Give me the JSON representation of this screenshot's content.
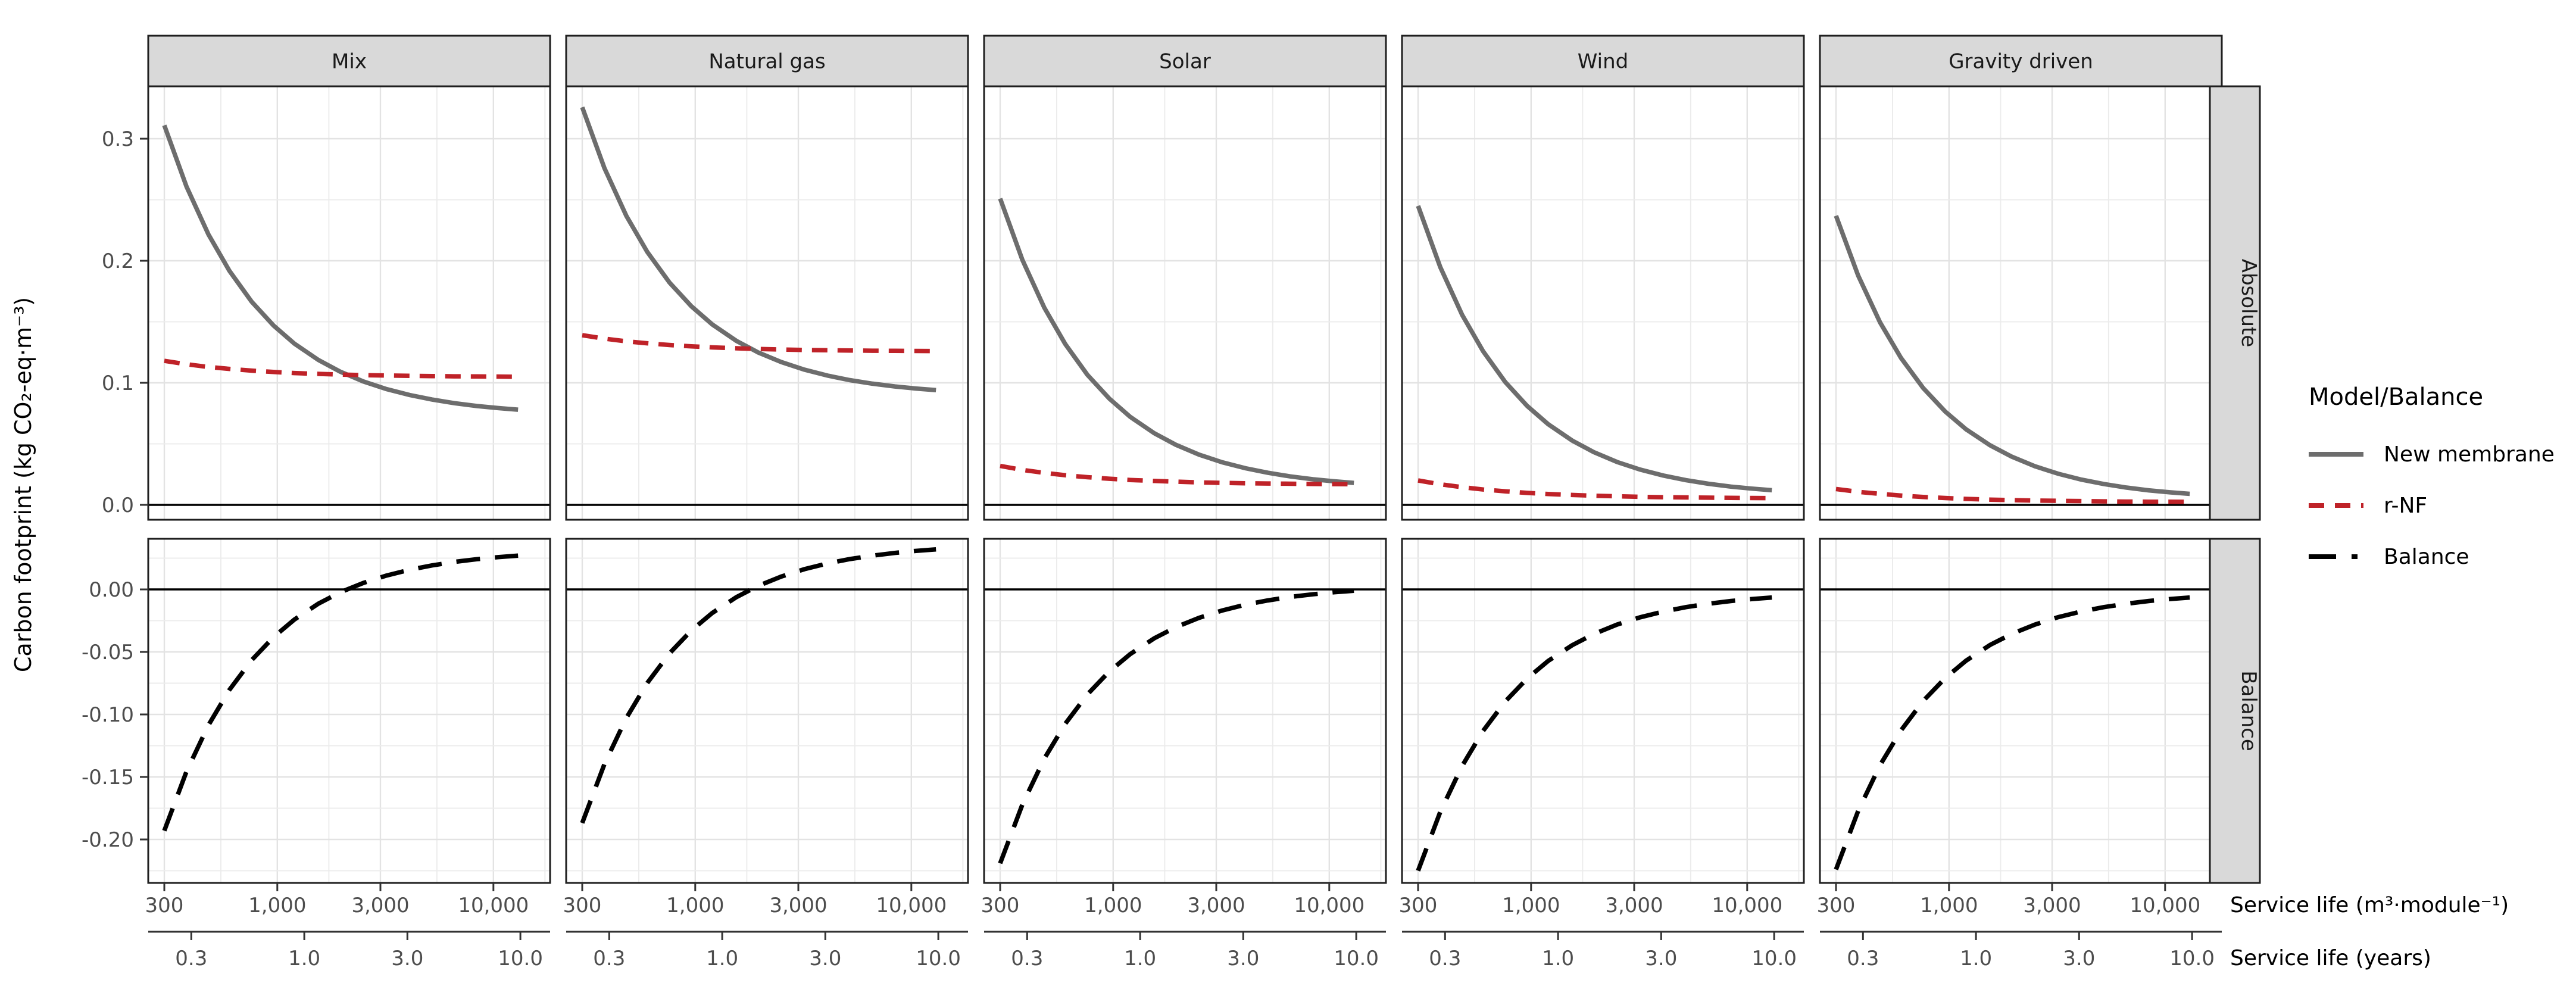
{
  "chart_data": {
    "type": "line",
    "title": "",
    "ylabel": "Carbon footprint (kg CO₂-eq·m⁻³)",
    "xlabel_primary": "Service life (m³·module⁻¹)",
    "xlabel_secondary": "Service life (years)",
    "x_scale": "log10",
    "x_range": [
      253,
      18300
    ],
    "x_ticks": {
      "values": [
        300,
        1000,
        3000,
        10000
      ],
      "labels": [
        "300",
        "1,000",
        "3,000",
        "10,000"
      ]
    },
    "x_minor": [
      548,
      1732,
      5477,
      17320
    ],
    "x_ticks_secondary": {
      "values_years": [
        0.3,
        1,
        3,
        10
      ],
      "labels": [
        "0.3",
        "1.0",
        "3.0",
        "10.0"
      ],
      "m3_per_year": 1333
    },
    "facet_columns": [
      "Mix",
      "Natural gas",
      "Solar",
      "Wind",
      "Gravity driven"
    ],
    "facet_rows": [
      "Absolute",
      "Balance"
    ],
    "rows": [
      {
        "name": "Absolute",
        "ylim": [
          -0.012,
          0.343
        ],
        "ticks": [
          0.0,
          0.1,
          0.2,
          0.3
        ],
        "tick_labels": [
          "0.0",
          "0.1",
          "0.2",
          "0.3"
        ],
        "minor": [
          0.05,
          0.15,
          0.25
        ],
        "zero_line": 0.0,
        "grid": true
      },
      {
        "name": "Balance",
        "ylim": [
          -0.235,
          0.0405
        ],
        "ticks": [
          0.0,
          -0.05,
          -0.1,
          -0.15,
          -0.2
        ],
        "tick_labels": [
          "0.00",
          "-0.05",
          "-0.10",
          "-0.15",
          "-0.20"
        ],
        "minor": [
          0.025,
          -0.025,
          -0.075,
          -0.125,
          -0.175,
          -0.225
        ],
        "zero_line": 0.0,
        "grid": true
      }
    ],
    "legend": {
      "title": "Model/Balance",
      "entries": [
        {
          "label": "New membrane",
          "color": "#6d6d6d",
          "style": "solid"
        },
        {
          "label": "r-NF",
          "color": "#bf2228",
          "style": "dashed"
        },
        {
          "label": "Balance",
          "color": "#000000",
          "style": "longdash"
        }
      ]
    },
    "colors": {
      "new_membrane": "#6d6d6d",
      "r_nf": "#bf2228",
      "balance": "#000000",
      "strip_fill": "#d9d9d9",
      "grid_major": "#e3e3e3",
      "grid_minor": "#ececec",
      "panel_border": "#1f1f1f",
      "tick_text": "#4d4d4d"
    },
    "x_samples": [
      300,
      380,
      480,
      600,
      760,
      960,
      1200,
      1550,
      1950,
      2500,
      3200,
      4100,
      5200,
      6600,
      8400,
      10500,
      13000
    ],
    "facets": [
      {
        "name": "Mix",
        "new_membrane": [
          0.311,
          0.2608,
          0.2216,
          0.1918,
          0.1666,
          0.147,
          0.1321,
          0.1187,
          0.1092,
          0.1011,
          0.0949,
          0.09,
          0.0863,
          0.0833,
          0.081,
          0.0793,
          0.078
        ],
        "r_nf": [
          0.118,
          0.1152,
          0.113,
          0.1114,
          0.11,
          0.1089,
          0.108,
          0.1073,
          0.1068,
          0.1063,
          0.106,
          0.1057,
          0.1055,
          0.1053,
          0.1052,
          0.1051,
          0.105
        ],
        "balance": [
          -0.193,
          -0.1456,
          -0.1086,
          -0.0804,
          -0.0567,
          -0.0382,
          -0.0241,
          -0.0114,
          -0.0024,
          0.0052,
          0.0111,
          0.0157,
          0.0192,
          0.022,
          0.0242,
          0.0258,
          0.027
        ]
      },
      {
        "name": "Natural gas",
        "new_membrane": [
          0.3258,
          0.2759,
          0.2368,
          0.2072,
          0.1822,
          0.1627,
          0.1478,
          0.1344,
          0.125,
          0.117,
          0.1108,
          0.1059,
          0.1022,
          0.0993,
          0.097,
          0.0953,
          0.094
        ],
        "r_nf": [
          0.139,
          0.1362,
          0.134,
          0.1324,
          0.131,
          0.1299,
          0.129,
          0.1283,
          0.1277,
          0.1273,
          0.1269,
          0.1267,
          0.1265,
          0.1263,
          0.1262,
          0.1261,
          0.126
        ],
        "balance": [
          -0.1868,
          -0.1397,
          -0.1028,
          -0.0748,
          -0.0512,
          -0.0328,
          -0.0188,
          -0.0062,
          0.0027,
          0.0103,
          0.0162,
          0.0208,
          0.0243,
          0.027,
          0.0292,
          0.0308,
          0.032
        ]
      },
      {
        "name": "Solar",
        "new_membrane": [
          0.251,
          0.2008,
          0.1616,
          0.1318,
          0.1066,
          0.087,
          0.0721,
          0.0587,
          0.0492,
          0.0411,
          0.0349,
          0.03,
          0.0263,
          0.0233,
          0.021,
          0.0193,
          0.018
        ],
        "r_nf": [
          0.0319,
          0.0287,
          0.0262,
          0.0243,
          0.0227,
          0.0214,
          0.0204,
          0.0196,
          0.019,
          0.0184,
          0.018,
          0.0177,
          0.0175,
          0.0173,
          0.0171,
          0.017,
          0.0169
        ],
        "balance": [
          -0.2191,
          -0.1721,
          -0.1354,
          -0.1075,
          -0.084,
          -0.0656,
          -0.0517,
          -0.0391,
          -0.0302,
          -0.0227,
          -0.0168,
          -0.0122,
          -0.0088,
          -0.006,
          -0.0039,
          -0.0023,
          -0.0011
        ]
      },
      {
        "name": "Wind",
        "new_membrane": [
          0.245,
          0.1948,
          0.1556,
          0.1258,
          0.1006,
          0.081,
          0.0661,
          0.0527,
          0.0432,
          0.0351,
          0.0289,
          0.024,
          0.0203,
          0.0173,
          0.015,
          0.0133,
          0.012
        ],
        "r_nf": [
          0.02,
          0.0169,
          0.0145,
          0.0126,
          0.0111,
          0.0098,
          0.0089,
          0.0081,
          0.0075,
          0.007,
          0.0066,
          0.0063,
          0.0061,
          0.0059,
          0.0057,
          0.0056,
          0.0055
        ],
        "balance": [
          -0.225,
          -0.1779,
          -0.1411,
          -0.1131,
          -0.0896,
          -0.0712,
          -0.0572,
          -0.0446,
          -0.0357,
          -0.0281,
          -0.0223,
          -0.0177,
          -0.0142,
          -0.0115,
          -0.0093,
          -0.0077,
          -0.0065
        ]
      },
      {
        "name": "Gravity driven",
        "new_membrane": [
          0.2369,
          0.1878,
          0.1494,
          0.1203,
          0.0957,
          0.0765,
          0.0619,
          0.0488,
          0.0395,
          0.0316,
          0.0255,
          0.0207,
          0.0171,
          0.0142,
          0.0119,
          0.0103,
          0.009
        ],
        "r_nf": [
          0.013,
          0.0107,
          0.009,
          0.0076,
          0.0065,
          0.0056,
          0.0049,
          0.0043,
          0.0039,
          0.0035,
          0.0033,
          0.0031,
          0.0029,
          0.0027,
          0.0026,
          0.0026,
          0.0025
        ],
        "balance": [
          -0.224,
          -0.1771,
          -0.1405,
          -0.1127,
          -0.0892,
          -0.0709,
          -0.057,
          -0.0444,
          -0.0356,
          -0.0281,
          -0.0222,
          -0.0176,
          -0.0142,
          -0.0115,
          -0.0093,
          -0.0077,
          -0.0065
        ]
      }
    ]
  }
}
